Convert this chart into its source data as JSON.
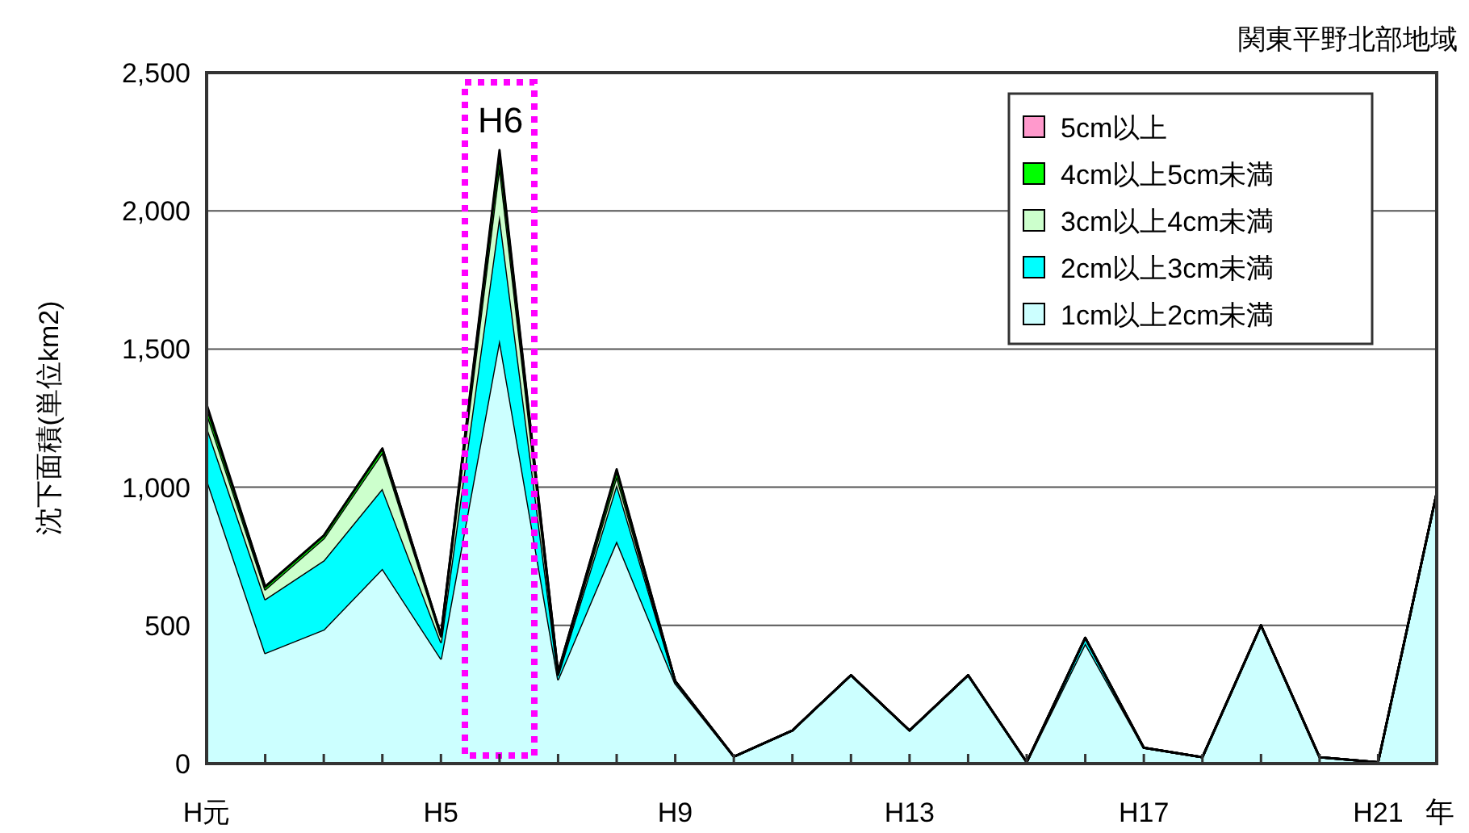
{
  "chart_data": {
    "type": "area",
    "stacked": true,
    "title": "関東平野北部地域",
    "xlabel": "年",
    "ylabel": "沈下面積(単位km2)",
    "categories": [
      "H元",
      null,
      null,
      null,
      "H5",
      null,
      null,
      null,
      "H9",
      null,
      null,
      null,
      "H13",
      null,
      null,
      null,
      "H17",
      null,
      null,
      null,
      "H21",
      null
    ],
    "series": [
      {
        "name": "1cm以上2cm未満",
        "color": "#ccffff",
        "values": [
          1030,
          400,
          485,
          705,
          380,
          1535,
          305,
          805,
          290,
          25,
          120,
          320,
          120,
          320,
          5,
          435,
          57,
          23,
          500,
          23,
          5,
          980
        ]
      },
      {
        "name": "2cm以上3cm未満",
        "color": "#00ffff",
        "values": [
          190,
          195,
          250,
          290,
          60,
          450,
          15,
          205,
          8,
          0,
          0,
          0,
          0,
          0,
          0,
          20,
          0,
          0,
          0,
          0,
          0,
          0
        ]
      },
      {
        "name": "3cm以上4cm未満",
        "color": "#ccffcc",
        "values": [
          50,
          35,
          80,
          130,
          20,
          180,
          5,
          30,
          0,
          0,
          0,
          0,
          0,
          0,
          0,
          0,
          0,
          0,
          0,
          0,
          0,
          0
        ]
      },
      {
        "name": "4cm以上5cm未満",
        "color": "#00ff00",
        "values": [
          20,
          10,
          10,
          15,
          5,
          40,
          5,
          20,
          0,
          0,
          0,
          0,
          0,
          0,
          0,
          0,
          0,
          0,
          0,
          0,
          0,
          0
        ]
      },
      {
        "name": "5cm以上",
        "color": "#ff99cc",
        "values": [
          10,
          0,
          0,
          0,
          0,
          15,
          0,
          5,
          0,
          0,
          0,
          0,
          0,
          0,
          0,
          0,
          0,
          0,
          0,
          0,
          0,
          0
        ]
      }
    ],
    "ylim": [
      0,
      2500
    ],
    "yticks": [
      0,
      {
        "value": 500,
        "label": "500"
      },
      {
        "value": 1000,
        "label": "1,000"
      },
      {
        "value": 1500,
        "label": "1,500"
      },
      {
        "value": 2000,
        "label": "2,000"
      },
      {
        "value": 2500,
        "label": "2,500"
      }
    ],
    "grid": "y",
    "legend": "top right",
    "annotations": [
      "H6"
    ]
  }
}
